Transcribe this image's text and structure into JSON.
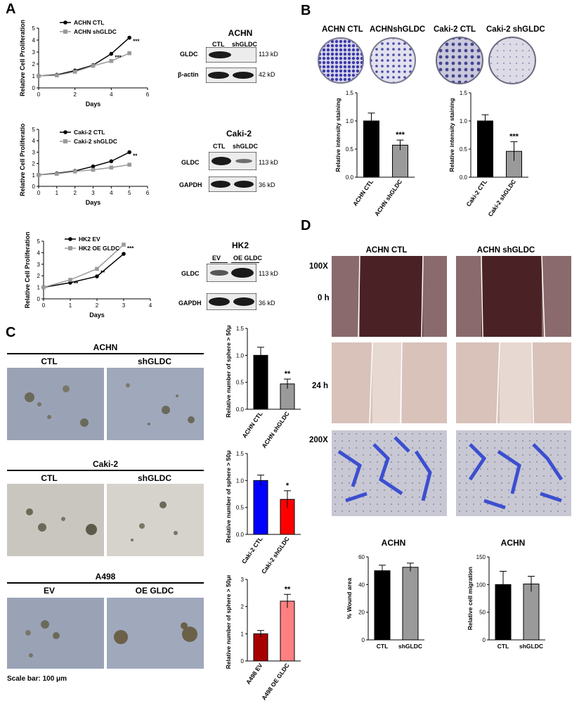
{
  "panel_labels": {
    "A": "A",
    "B": "B",
    "C": "C",
    "D": "D"
  },
  "colors": {
    "black": "#000000",
    "gray": "#9a9a9a",
    "blue": "#0000ff",
    "red": "#ff0000",
    "darkred": "#a80000",
    "salmon": "#ff8080",
    "crystal": "#3b3aa8",
    "transwell": "#3c4fd0",
    "wound_gap": "#4a2226",
    "cells_dark": "#8a6a6c",
    "cells_light": "#e3cfc7",
    "sphere_bg": "#9aa3b6"
  },
  "panel_A": {
    "chart1": {
      "xlabel": "Days",
      "ylabel": "Relative Cell Proliferation",
      "legend": [
        "ACHN CTL",
        "ACHN shGLDC"
      ],
      "xticks": [
        "0",
        "2",
        "4",
        "6"
      ],
      "yticks": [
        "0",
        "1",
        "2",
        "3",
        "4",
        "5"
      ],
      "stars": [
        "***",
        "***"
      ]
    },
    "chart2": {
      "xlabel": "Days",
      "ylabel": "Relative Cell Proliferation",
      "legend": [
        "Caki-2 CTL",
        "Caki-2 shGLDC"
      ],
      "xticks": [
        "0",
        "1",
        "2",
        "3",
        "4",
        "5",
        "6"
      ],
      "yticks": [
        "0",
        "1",
        "2",
        "3",
        "4",
        "5"
      ],
      "stars": [
        "**"
      ]
    },
    "chart3": {
      "xlabel": "Days",
      "ylabel": "Relative Cell Proliferation",
      "legend": [
        "HK2 EV",
        "HK2 OE GLDC"
      ],
      "xticks": [
        "0",
        "1",
        "2",
        "3",
        "4"
      ],
      "yticks": [
        "0",
        "1",
        "2",
        "3",
        "4",
        "5"
      ],
      "stars": [
        "**",
        "**",
        "***"
      ]
    },
    "blot1": {
      "title": "ACHN",
      "lanes": [
        "CTL",
        "shGLDC"
      ],
      "rows": [
        {
          "label": "GLDC",
          "size": "113 kD"
        },
        {
          "label": "β-actin",
          "size": "42 kD"
        }
      ]
    },
    "blot2": {
      "title": "Caki-2",
      "lanes": [
        "CTL",
        "shGLDC"
      ],
      "rows": [
        {
          "label": "GLDC",
          "size": "113 kD"
        },
        {
          "label": "GAPDH",
          "size": "36 kD"
        }
      ]
    },
    "blot3": {
      "title": "HK2",
      "lanes": [
        "EV",
        "OE GLDC"
      ],
      "rows": [
        {
          "label": "GLDC",
          "size": "113 kD"
        },
        {
          "label": "GAPDH",
          "size": "36 kD"
        }
      ]
    }
  },
  "panel_B": {
    "dish_labels": [
      "ACHN CTL",
      "ACHNshGLDC",
      "Caki-2 CTL",
      "Caki-2 shGLDC"
    ],
    "bar1": {
      "ylabel": "Relative intensity staining",
      "categories": [
        "ACHN CTL",
        "ACHN shGLDC"
      ],
      "yticks": [
        "0.0",
        "0.5",
        "1.0",
        "1.5"
      ],
      "star": "***"
    },
    "bar2": {
      "ylabel": "Relative intensity staining",
      "categories": [
        "Caki-2 CTL",
        "Caki-2 shGLDC"
      ],
      "yticks": [
        "0.0",
        "0.5",
        "1.0",
        "1.5"
      ],
      "star": "***"
    }
  },
  "panel_C": {
    "groups": [
      {
        "title": "ACHN",
        "left": "CTL",
        "right": "shGLDC"
      },
      {
        "title": "Caki-2",
        "left": "CTL",
        "right": "shGLDC"
      },
      {
        "title": "A498",
        "left": "EV",
        "right": "OE GLDC"
      }
    ],
    "scale_bar": "Scale bar: 100 μm",
    "bar1": {
      "ylabel": "Relative number of sphere > 50μm",
      "categories": [
        "ACHN CTL",
        "ACHN shGLDC"
      ],
      "yticks": [
        "0.0",
        "0.5",
        "1.0",
        "1.5"
      ],
      "star": "**"
    },
    "bar2": {
      "ylabel": "Relative number of sphere > 50μm",
      "categories": [
        "Caki-2 CTL",
        "Caki-2 shGLDC"
      ],
      "yticks": [
        "0.0",
        "0.5",
        "1.0",
        "1.5"
      ],
      "star": "*"
    },
    "bar3": {
      "ylabel": "Relative number of sphere > 50μm",
      "categories": [
        "A498 EV",
        "A498 OE GLDC"
      ],
      "yticks": [
        "0",
        "1",
        "2",
        "3"
      ],
      "star": "**"
    }
  },
  "panel_D": {
    "col_titles": [
      "ACHN CTL",
      "ACHN  shGLDC"
    ],
    "row_labels": {
      "mag1": "100X",
      "t0": "0 h",
      "t24": "24 h",
      "mag2": "200X"
    },
    "bar1": {
      "title": "ACHN",
      "ylabel": "% Wound area",
      "categories": [
        "CTL",
        "shGLDC"
      ],
      "yticks": [
        "0",
        "20",
        "40",
        "60"
      ]
    },
    "bar2": {
      "title": "ACHN",
      "ylabel": "Relative cell migration",
      "categories": [
        "CTL",
        "shGLDC"
      ],
      "yticks": [
        "0",
        "50",
        "100",
        "150"
      ]
    }
  },
  "chart_data": [
    {
      "type": "line",
      "title": "",
      "xlabel": "Days",
      "ylabel": "Relative Cell Proliferation",
      "xlim": [
        0,
        6
      ],
      "ylim": [
        0,
        5
      ],
      "series": [
        {
          "name": "ACHN CTL",
          "x": [
            0,
            1,
            2,
            3,
            4,
            5
          ],
          "y": [
            1.0,
            1.1,
            1.45,
            1.9,
            2.85,
            4.2
          ]
        },
        {
          "name": "ACHN shGLDC",
          "x": [
            0,
            1,
            2,
            3,
            4,
            5
          ],
          "y": [
            1.0,
            1.05,
            1.35,
            1.85,
            2.25,
            2.9
          ]
        }
      ],
      "legend": "top-left"
    },
    {
      "type": "line",
      "title": "",
      "xlabel": "Days",
      "ylabel": "Relative Cell Proliferation",
      "xlim": [
        0,
        6
      ],
      "ylim": [
        0,
        5
      ],
      "series": [
        {
          "name": "Caki-2 CTL",
          "x": [
            0,
            1,
            2,
            3,
            4,
            5
          ],
          "y": [
            1.0,
            1.15,
            1.35,
            1.75,
            2.2,
            3.0
          ]
        },
        {
          "name": "Caki-2 shGLDC",
          "x": [
            0,
            1,
            2,
            3,
            4,
            5
          ],
          "y": [
            1.0,
            1.1,
            1.3,
            1.45,
            1.65,
            1.9
          ]
        }
      ],
      "legend": "top-left"
    },
    {
      "type": "line",
      "title": "",
      "xlabel": "Days",
      "ylabel": "Relative Cell Proliferation",
      "xlim": [
        0,
        4
      ],
      "ylim": [
        0,
        5
      ],
      "series": [
        {
          "name": "HK2 EV",
          "x": [
            0,
            1,
            2,
            3
          ],
          "y": [
            1.0,
            1.4,
            1.95,
            3.9
          ]
        },
        {
          "name": "HK2 OE GLDC",
          "x": [
            0,
            1,
            2,
            3
          ],
          "y": [
            1.0,
            1.65,
            2.6,
            4.7
          ]
        }
      ],
      "legend": "top-left"
    },
    {
      "type": "bar",
      "ylabel": "Relative intensity staining",
      "categories": [
        "ACHN CTL",
        "ACHN shGLDC"
      ],
      "values": [
        1.0,
        0.57
      ],
      "errors": [
        0.14,
        0.09
      ],
      "ylim": [
        0,
        1.5
      ]
    },
    {
      "type": "bar",
      "ylabel": "Relative intensity staining",
      "categories": [
        "Caki-2 CTL",
        "Caki-2 shGLDC"
      ],
      "values": [
        1.0,
        0.46
      ],
      "errors": [
        0.11,
        0.17
      ],
      "ylim": [
        0,
        1.5
      ]
    },
    {
      "type": "bar",
      "ylabel": "Relative number of sphere > 50μm",
      "categories": [
        "ACHN CTL",
        "ACHN shGLDC"
      ],
      "values": [
        1.0,
        0.47
      ],
      "errors": [
        0.15,
        0.09
      ],
      "ylim": [
        0,
        1.5
      ]
    },
    {
      "type": "bar",
      "ylabel": "Relative number of sphere > 50μm",
      "categories": [
        "Caki-2 CTL",
        "Caki-2 shGLDC"
      ],
      "values": [
        1.0,
        0.65
      ],
      "errors": [
        0.1,
        0.16
      ],
      "ylim": [
        0,
        1.5
      ]
    },
    {
      "type": "bar",
      "ylabel": "Relative number of sphere > 50μm",
      "categories": [
        "A498 EV",
        "A498 OE GLDC"
      ],
      "values": [
        1.0,
        2.2
      ],
      "errors": [
        0.12,
        0.25
      ],
      "ylim": [
        0,
        3
      ]
    },
    {
      "type": "bar",
      "title": "ACHN",
      "ylabel": "% Wound area",
      "categories": [
        "CTL",
        "shGLDC"
      ],
      "values": [
        50,
        52.5
      ],
      "errors": [
        4,
        3
      ],
      "ylim": [
        0,
        60
      ]
    },
    {
      "type": "bar",
      "title": "ACHN",
      "ylabel": "Relative cell migration",
      "categories": [
        "CTL",
        "shGLDC"
      ],
      "values": [
        100,
        101
      ],
      "errors": [
        24,
        14
      ],
      "ylim": [
        0,
        150
      ]
    }
  ]
}
